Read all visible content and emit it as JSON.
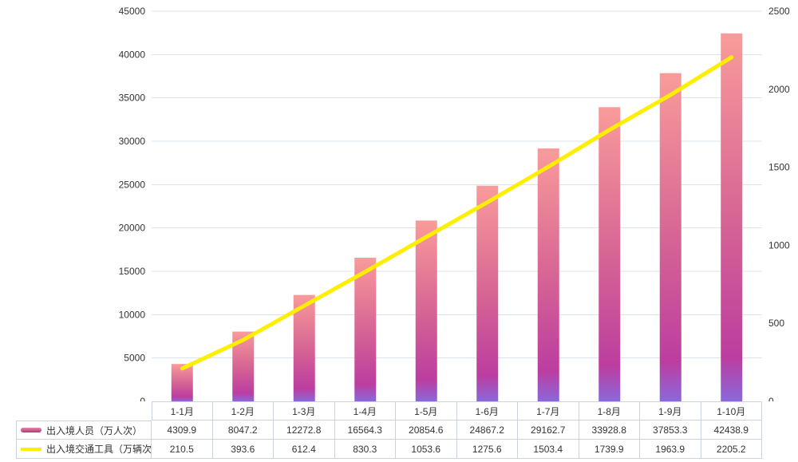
{
  "chart_data": {
    "type": "bar+line",
    "categories": [
      "1-1月",
      "1-2月",
      "1-3月",
      "1-4月",
      "1-5月",
      "1-6月",
      "1-7月",
      "1-8月",
      "1-9月",
      "1-10月"
    ],
    "series": [
      {
        "name": "出入境人员（万人次）",
        "type": "bar",
        "axis": "left",
        "values": [
          4309.9,
          8047.2,
          12272.8,
          16564.3,
          20854.6,
          24867.2,
          29162.7,
          33928.8,
          37853.3,
          42438.9
        ],
        "gradient": [
          "#f99b9a",
          "#d56394",
          "#bc3da0",
          "#8a68db"
        ],
        "legend_swatch_top": "#e287a5",
        "legend_swatch_bottom": "#be3579"
      },
      {
        "name": "出入境交通工具（万辆次）",
        "type": "line",
        "axis": "right",
        "values": [
          210.5,
          393.6,
          612.4,
          830.3,
          1053.6,
          1275.6,
          1503.4,
          1739.9,
          1963.9,
          2205.2
        ],
        "color": "#feef00"
      }
    ],
    "left_axis": {
      "min": 0,
      "max": 45000,
      "step": 5000,
      "tick_labels": [
        "45000",
        "40000",
        "35000",
        "30000",
        "25000",
        "20000",
        "15000",
        "10000",
        "5000",
        "0"
      ]
    },
    "right_axis": {
      "min": 0,
      "max": 2500,
      "step": 500,
      "tick_labels": [
        "2500",
        "2000",
        "1500",
        "1000",
        "500",
        "0"
      ]
    },
    "grid": true,
    "legend_position": "table-left",
    "title": ""
  },
  "colors": {
    "grid_line": "#dde3ec",
    "axis_text": "#333333",
    "table_border": "#ccd3dd",
    "table_text": "#333333",
    "line_yellow": "#feef00"
  }
}
